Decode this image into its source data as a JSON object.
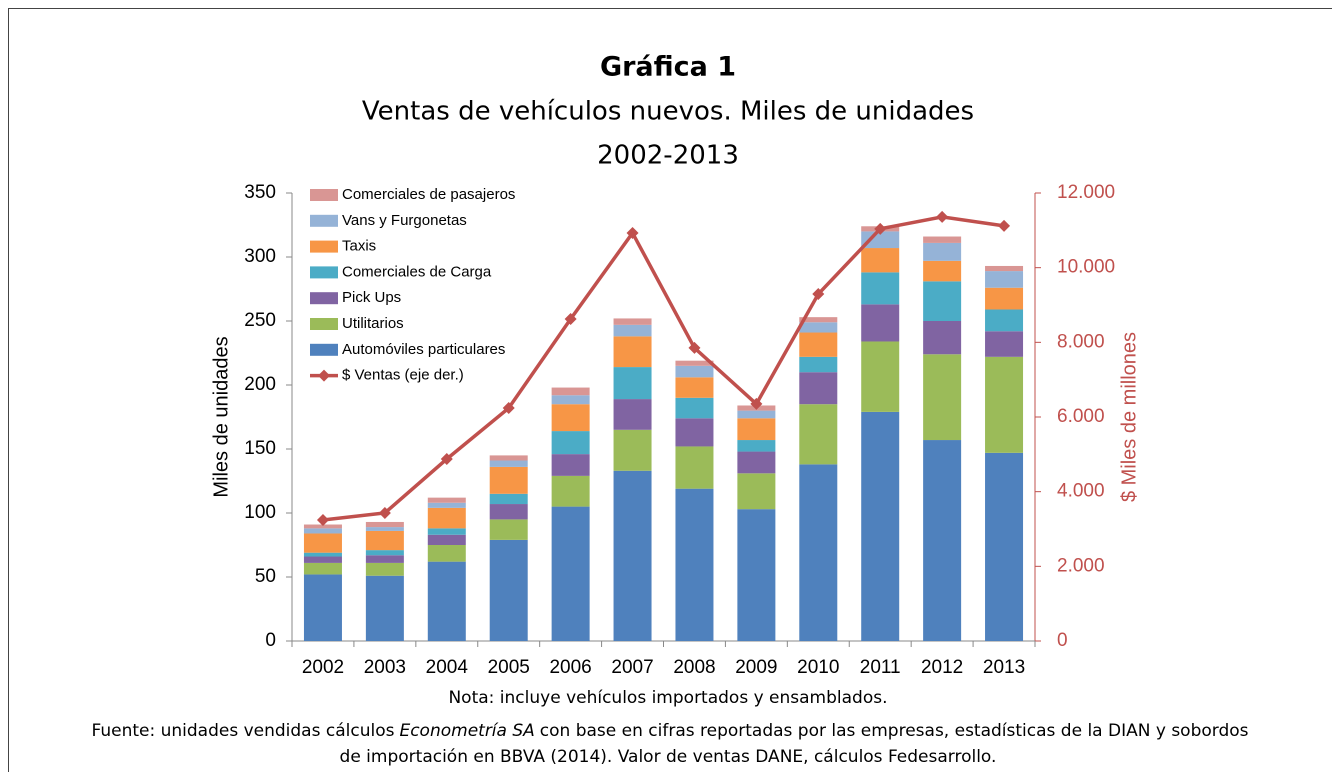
{
  "chart_data": {
    "type": "bar",
    "stacked": true,
    "title": "Gráfica 1",
    "subtitle": [
      "Ventas de vehículos nuevos. Miles de unidades",
      "2002-2013"
    ],
    "y_label": "Miles de unidades",
    "y2_label": "$ Miles de millones",
    "categories": [
      "2002",
      "2003",
      "2004",
      "2005",
      "2006",
      "2007",
      "2008",
      "2009",
      "2010",
      "2011",
      "2012",
      "2013"
    ],
    "series": [
      {
        "name": "Automóviles particulares",
        "color": "#4f81bd",
        "values": [
          52,
          51,
          62,
          79,
          105,
          133,
          119,
          103,
          138,
          179,
          157,
          147
        ]
      },
      {
        "name": "Utilitarios",
        "color": "#9bbb59",
        "values": [
          9,
          10,
          13,
          16,
          24,
          32,
          33,
          28,
          47,
          55,
          67,
          75
        ]
      },
      {
        "name": "Pick Ups",
        "color": "#8064a2",
        "values": [
          5,
          6,
          8,
          12,
          17,
          24,
          22,
          17,
          25,
          29,
          26,
          20
        ]
      },
      {
        "name": "Comerciales de Carga",
        "color": "#4bacc6",
        "values": [
          3,
          4,
          5,
          8,
          18,
          25,
          16,
          9,
          12,
          25,
          31,
          17
        ]
      },
      {
        "name": "Taxis",
        "color": "#f79646",
        "values": [
          15,
          15,
          16,
          21,
          21,
          24,
          16,
          17,
          19,
          19,
          16,
          17
        ]
      },
      {
        "name": "Vans y Furgonetas",
        "color": "#95b3d7",
        "values": [
          4,
          3,
          4,
          5,
          7,
          9,
          9,
          6,
          8,
          13,
          14,
          13
        ]
      },
      {
        "name": "Comerciales de pasajeros",
        "color": "#d99694",
        "values": [
          3,
          4,
          4,
          4,
          6,
          5,
          4,
          4,
          4,
          4,
          5,
          4
        ]
      },
      {
        "name": "$ Ventas (eje der.)",
        "color": "#c0504d",
        "type": "line",
        "axis": "y2",
        "values": [
          3240,
          3430,
          4875,
          6240,
          8625,
          10930,
          7850,
          6350,
          9295,
          11040,
          11360,
          11120
        ]
      }
    ],
    "ylim": [
      0,
      350
    ],
    "yticks": [
      0,
      50,
      100,
      150,
      200,
      250,
      300,
      350
    ],
    "y2lim": [
      0,
      12000
    ],
    "y2ticks": [
      0,
      {
        "value": 2000,
        "label": "2.000"
      },
      {
        "value": 4000,
        "label": "4.000"
      },
      {
        "value": 6000,
        "label": "6.000"
      },
      {
        "value": 8000,
        "label": "8.000"
      },
      {
        "value": 10000,
        "label": "10.000"
      },
      {
        "value": 12000,
        "label": "12.000"
      }
    ],
    "legend": "top-left",
    "note": "Nota: incluye vehículos importados y ensamblados.",
    "source": [
      "Fuente: unidades vendidas cálculos",
      "Econometría SA",
      "con base en cifras reportadas por las empresas, estadísticas de la DIAN y sobordos",
      "de importación en BBVA (2014). Valor de ventas DANE, cálculos Fedesarrollo."
    ]
  }
}
